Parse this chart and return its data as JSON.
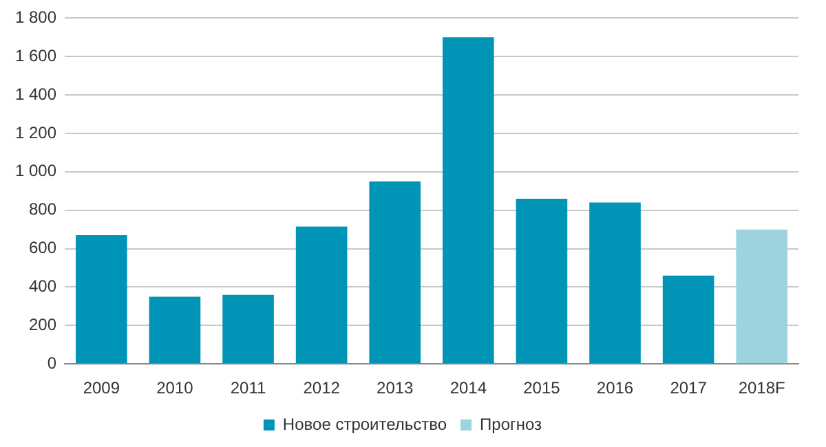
{
  "chart_data": {
    "type": "bar",
    "categories": [
      "2009",
      "2010",
      "2011",
      "2012",
      "2013",
      "2014",
      "2015",
      "2016",
      "2017",
      "2018F"
    ],
    "series": [
      {
        "name": "Новое строительство",
        "color": "#0095b6",
        "values": [
          670,
          350,
          360,
          715,
          950,
          1700,
          860,
          840,
          460,
          null
        ]
      },
      {
        "name": "Прогноз",
        "color": "#9dd3df",
        "values": [
          null,
          null,
          null,
          null,
          null,
          null,
          null,
          null,
          null,
          700
        ]
      }
    ],
    "ylim": [
      0,
      1800
    ],
    "yticks": [
      0,
      200,
      400,
      600,
      800,
      {
        "value": 1000,
        "label": "1 000"
      },
      {
        "value": 1200,
        "label": "1 200"
      },
      {
        "value": 1400,
        "label": "1 400"
      },
      {
        "value": 1600,
        "label": "1 600"
      },
      {
        "value": 1800,
        "label": "1 800"
      }
    ],
    "grid": "y",
    "legend": "bottom"
  }
}
